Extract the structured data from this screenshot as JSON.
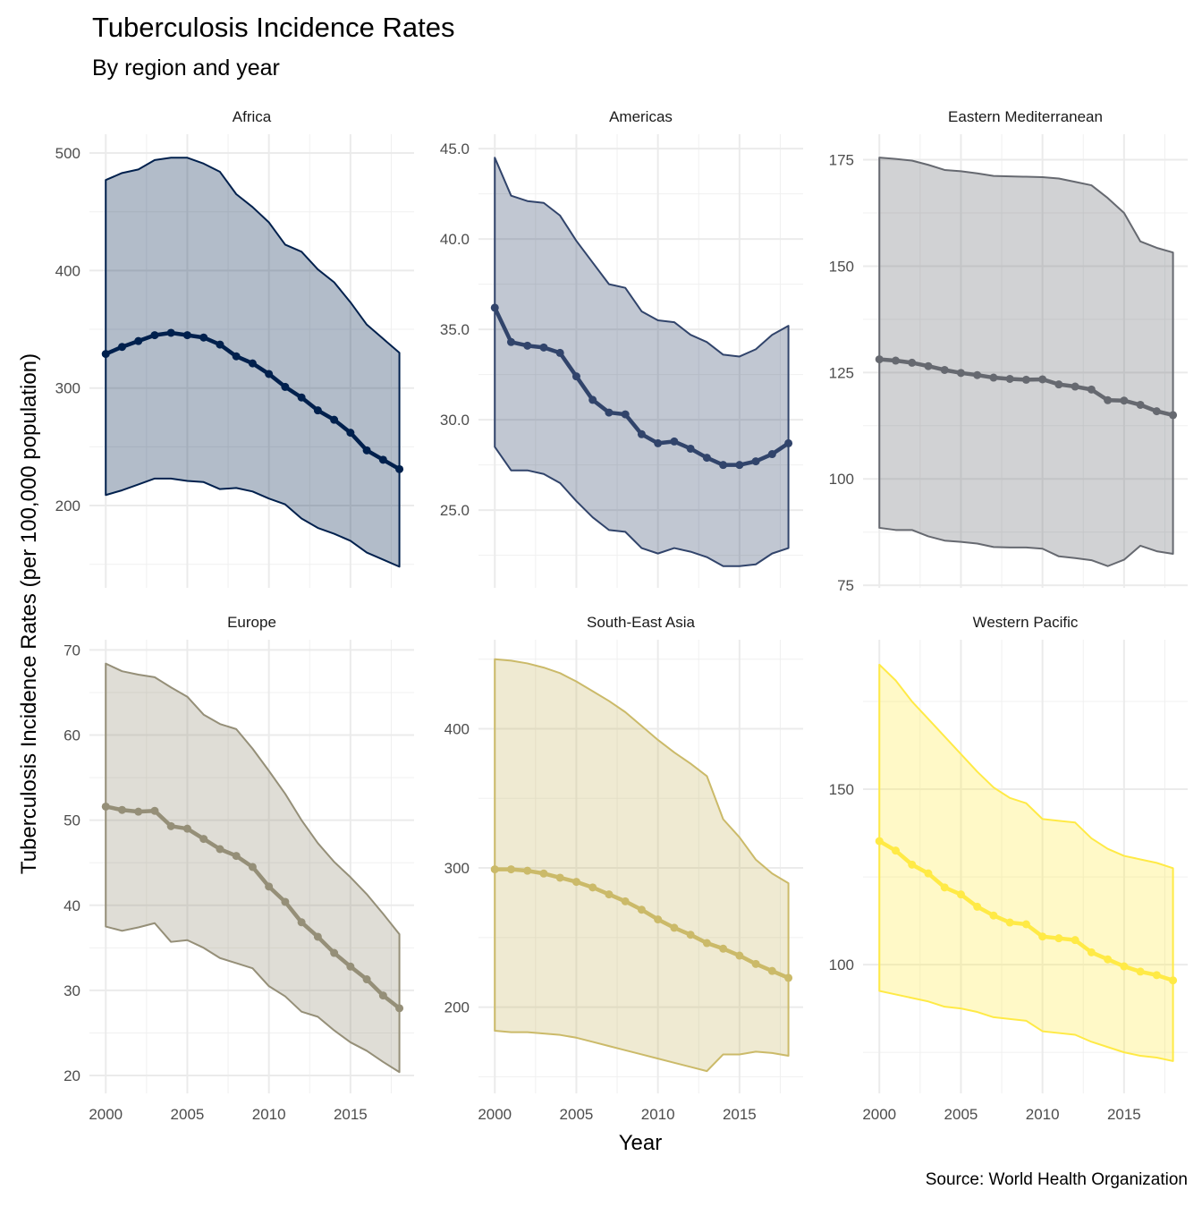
{
  "chart_data": {
    "type": "line",
    "title": "Tuberculosis Incidence Rates",
    "subtitle": "By region and year",
    "xlabel": "Year",
    "ylabel": "Tuberculosis Incidence Rates (per 100,000 population)",
    "caption": "Source: World Health Organization",
    "grid": true,
    "x": [
      2000,
      2001,
      2002,
      2003,
      2004,
      2005,
      2006,
      2007,
      2008,
      2009,
      2010,
      2011,
      2012,
      2013,
      2014,
      2015,
      2016,
      2017,
      2018
    ],
    "xlim": [
      1999.0,
      2018.9
    ],
    "x_ticks": [
      2000,
      2005,
      2010,
      2015
    ],
    "x_tick_labels": [
      "2000",
      "2005",
      "2010",
      "2015"
    ],
    "facets": [
      {
        "name": "Africa",
        "color": "#00204D",
        "ylim": [
          130,
          516
        ],
        "y_ticks": [
          200,
          300,
          400,
          500
        ],
        "y_tick_labels": [
          "200",
          "300",
          "400",
          "500"
        ],
        "mean": [
          329,
          335,
          340,
          345,
          347,
          345,
          343,
          337,
          327,
          321,
          312,
          301,
          292,
          281,
          273,
          262,
          247,
          239,
          231
        ],
        "upper": [
          477,
          483,
          486,
          494,
          496,
          496,
          491,
          484,
          465,
          454,
          441,
          422,
          416,
          401,
          390,
          373,
          354,
          342,
          330
        ],
        "lower": [
          209,
          213,
          218,
          223,
          223,
          221,
          220,
          214,
          215,
          212,
          206,
          201,
          189,
          181,
          176,
          170,
          160,
          154,
          148
        ]
      },
      {
        "name": "Americas",
        "color": "#31446B",
        "ylim": [
          20.7,
          45.8
        ],
        "y_ticks": [
          25,
          30,
          35,
          40,
          45
        ],
        "y_tick_labels": [
          "25.0",
          "30.0",
          "35.0",
          "40.0",
          "45.0"
        ],
        "mean": [
          36.2,
          34.3,
          34.1,
          34.0,
          33.7,
          32.4,
          31.1,
          30.4,
          30.3,
          29.2,
          28.7,
          28.8,
          28.4,
          27.9,
          27.5,
          27.5,
          27.7,
          28.1,
          28.7
        ],
        "upper": [
          44.5,
          42.4,
          42.1,
          42.0,
          41.3,
          39.9,
          38.7,
          37.5,
          37.3,
          36.0,
          35.5,
          35.4,
          34.7,
          34.3,
          33.6,
          33.5,
          33.9,
          34.7,
          35.2
        ],
        "lower": [
          28.5,
          27.2,
          27.2,
          27.0,
          26.5,
          25.5,
          24.6,
          23.9,
          23.8,
          22.9,
          22.6,
          22.9,
          22.7,
          22.4,
          21.9,
          21.9,
          22.0,
          22.6,
          22.9
        ]
      },
      {
        "name": "Eastern Mediterranean",
        "color": "#666970",
        "ylim": [
          74.4,
          181
        ],
        "y_ticks": [
          75,
          100,
          125,
          150,
          175
        ],
        "y_tick_labels": [
          "75",
          "100",
          "125",
          "150",
          "175"
        ],
        "mean": [
          128.1,
          127.8,
          127.3,
          126.5,
          125.6,
          124.9,
          124.4,
          123.8,
          123.5,
          123.3,
          123.4,
          122.2,
          121.7,
          121.0,
          118.5,
          118.4,
          117.4,
          115.9,
          115.0
        ],
        "upper": [
          175.5,
          175.2,
          174.8,
          173.8,
          172.6,
          172.3,
          171.8,
          171.2,
          171.1,
          171.0,
          170.9,
          170.6,
          169.8,
          169.0,
          166.0,
          162.5,
          155.8,
          154.3,
          153.2
        ],
        "lower": [
          88.5,
          88.0,
          88.0,
          86.5,
          85.5,
          85.2,
          84.8,
          84.0,
          83.9,
          83.9,
          83.6,
          81.8,
          81.4,
          80.9,
          79.5,
          81.0,
          84.3,
          83.0,
          82.4
        ]
      },
      {
        "name": "Europe",
        "color": "#958F78",
        "ylim": [
          17.9,
          71.2
        ],
        "y_ticks": [
          20,
          30,
          40,
          50,
          60,
          70
        ],
        "y_tick_labels": [
          "20",
          "30",
          "40",
          "50",
          "60",
          "70"
        ],
        "mean": [
          51.6,
          51.2,
          51.0,
          51.1,
          49.3,
          49.0,
          47.8,
          46.6,
          45.8,
          44.5,
          42.2,
          40.4,
          38.0,
          36.3,
          34.4,
          32.8,
          31.3,
          29.4,
          27.9
        ],
        "upper": [
          68.4,
          67.5,
          67.1,
          66.8,
          65.6,
          64.5,
          62.4,
          61.3,
          60.7,
          58.4,
          55.8,
          53.1,
          50.0,
          47.3,
          45.1,
          43.3,
          41.3,
          39.0,
          36.6
        ],
        "lower": [
          37.5,
          37.0,
          37.4,
          37.9,
          35.7,
          35.9,
          35.0,
          33.8,
          33.2,
          32.6,
          30.5,
          29.3,
          27.5,
          26.9,
          25.3,
          23.9,
          22.9,
          21.6,
          20.4
        ]
      },
      {
        "name": "South-East Asia",
        "color": "#CBBA69",
        "ylim": [
          138,
          464
        ],
        "y_ticks": [
          200,
          300,
          400
        ],
        "y_tick_labels": [
          "200",
          "300",
          "400"
        ],
        "mean": [
          299,
          299,
          298,
          296,
          293,
          290,
          286,
          281,
          276,
          270,
          263,
          257,
          252,
          246,
          242,
          237,
          231,
          226,
          221
        ],
        "upper": [
          450,
          449,
          447,
          444,
          440,
          434,
          427,
          420,
          412,
          402,
          392,
          383,
          375,
          366,
          335,
          322,
          306,
          296,
          289
        ],
        "lower": [
          183,
          182,
          182,
          181,
          180,
          178,
          175,
          172,
          169,
          166,
          163,
          160,
          157,
          154,
          166,
          166,
          168,
          167,
          165
        ]
      },
      {
        "name": "Western Pacific",
        "color": "#FFEA46",
        "ylim": [
          63.3,
          192.6
        ],
        "y_ticks": [
          100,
          150
        ],
        "y_tick_labels": [
          "100",
          "150"
        ],
        "mean": [
          135.2,
          132.5,
          128.5,
          126,
          122,
          120,
          116.5,
          114,
          112,
          111.5,
          108,
          107.5,
          107,
          103.5,
          101.5,
          99.5,
          98,
          97,
          95.5
        ],
        "upper": [
          185.5,
          181,
          175,
          170,
          165,
          160,
          155,
          150.5,
          147.5,
          146,
          141.5,
          141,
          140.5,
          136,
          133,
          131,
          130,
          129,
          127.5
        ],
        "lower": [
          92.5,
          91.5,
          90.5,
          89.5,
          88,
          87.5,
          86.5,
          85,
          84.5,
          84,
          81,
          80.5,
          80,
          78,
          76.5,
          75,
          74,
          73.5,
          72.5
        ]
      }
    ]
  }
}
